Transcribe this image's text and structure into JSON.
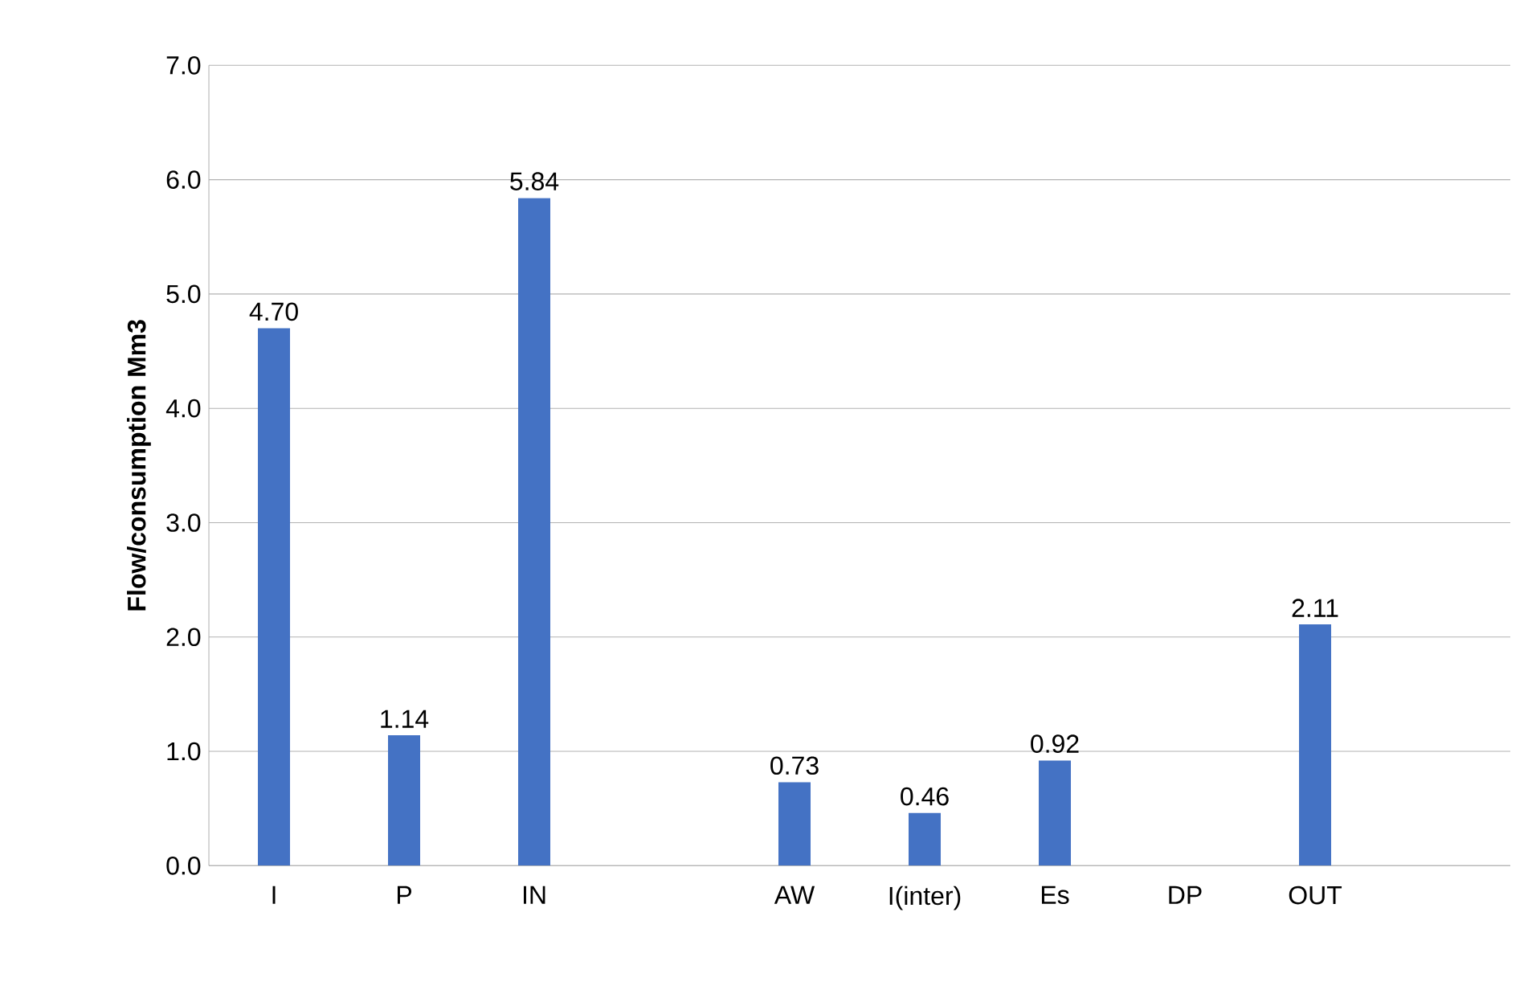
{
  "chart_data": {
    "type": "bar",
    "ylabel": "Flow/consumption Mm3",
    "categories": [
      "I",
      "P",
      "IN",
      null,
      "AW",
      "I(inter)",
      "Es",
      "DP",
      "OUT",
      null
    ],
    "values": [
      4.7,
      1.14,
      5.84,
      null,
      0.73,
      0.46,
      0.92,
      null,
      2.11,
      null
    ],
    "value_labels": [
      "4.70",
      "1.14",
      "5.84",
      null,
      "0.73",
      "0.46",
      "0.92",
      null,
      "2.11",
      null
    ],
    "color": "#4472c4",
    "ylim": [
      0,
      7
    ],
    "yticks": [
      {
        "value": 0,
        "label": "0.0"
      },
      {
        "value": 1,
        "label": "1.0"
      },
      {
        "value": 2,
        "label": "2.0"
      },
      {
        "value": 3,
        "label": "3.0"
      },
      {
        "value": 4,
        "label": "4.0"
      },
      {
        "value": 5,
        "label": "5.0"
      },
      {
        "value": 6,
        "label": "6.0"
      },
      {
        "value": 7,
        "label": "7.0"
      }
    ],
    "grid": "y"
  }
}
